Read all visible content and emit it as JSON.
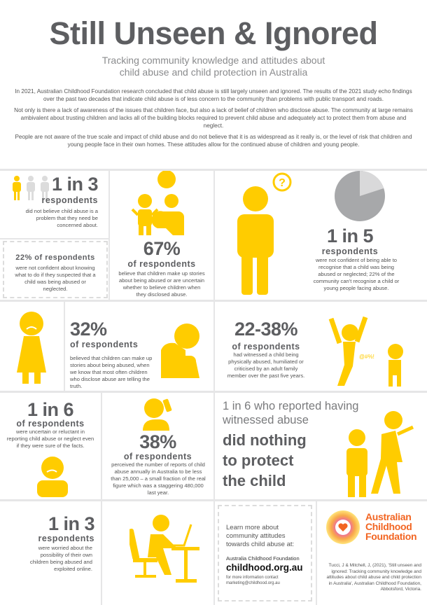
{
  "header": {
    "title": "Still Unseen & Ignored",
    "subtitle_line1": "Tracking community knowledge and attitudes about",
    "subtitle_line2": "child abuse and child protection in Australia"
  },
  "intro": [
    "In 2021, Australian Childhood Foundation research concluded that child abuse is still largely unseen and ignored. The results of the 2021 study echo findings over the past two decades that indicate child abuse is of less concern to the community than problems with public transport and roads.",
    "Not only is there a lack of awareness of the issues that children face, but also a lack of belief of children who disclose abuse. The community at large remains ambivalent about trusting children and lacks all of the building blocks required to prevent child abuse and adequately act to protect them from abuse and neglect.",
    "People are not aware of the true scale and impact of child abuse and do not believe that it is as widespread as it really is, or the level of risk that children and young people face in their own homes. These attitudes allow for the continued abuse of children and young people."
  ],
  "stats": {
    "s1": {
      "figure": "1 in 3",
      "label": "respondents",
      "text": "did not believe child abuse is a problem that they need be concerned about."
    },
    "s2": {
      "label": "22% of respondents",
      "text": "were not confident about knowing what to do if they suspected that a child was being abused or neglected."
    },
    "s3": {
      "figure": "67%",
      "label": "of respondents",
      "text": "believe that children make up stories about being abused or are uncertain whether to believe children when they disclosed abuse."
    },
    "s4": {
      "figure": "1 in 5",
      "label": "respondents",
      "text": "were not confident of being able to recognise that a child was being abused or neglected; 22% of the community can't recognise a child or young people facing abuse.",
      "pie_fraction": 0.2
    },
    "s5": {
      "figure": "32%",
      "label": "of respondents",
      "text": "believed that children can make up stories about being abused, when we know that most often children who disclose abuse are telling the truth."
    },
    "s6": {
      "figure": "22-38%",
      "label": "of respondents",
      "text": "had witnessed a child being physically abused, humiliated or criticised by an adult family member over the past five years.",
      "swear": "@#%!"
    },
    "s7": {
      "figure": "1 in 6",
      "label": "of respondents",
      "text": "were uncertain or reluctant in reporting child abuse or neglect even if they were sure of the facts."
    },
    "s8": {
      "figure": "38%",
      "label": "of respondents",
      "text": "perceived the number of reports of child abuse annually in Australia to be less than 25,000 – a small fraction of the real figure which was a staggering 480,000 last year."
    },
    "s9": {
      "line1": "1 in 6 who reported having",
      "line2": "witnessed abuse",
      "bold1": "did nothing",
      "bold2": "to protect",
      "bold3": "the child"
    },
    "s10": {
      "figure": "1 in 3",
      "label": "respondents",
      "text": "were worried about the possibility of their own children being abused and exploited online."
    }
  },
  "cta": {
    "lead": "Learn more about community attitudes towards child abuse at:",
    "org": "Australia Childhood Foundation",
    "url": "childhood.org.au",
    "contact_line1": "for more information contact",
    "contact_line2": "marketing@childhood.org.au"
  },
  "logo": {
    "line1": "Australian",
    "line2": "Childhood",
    "line3": "Foundation"
  },
  "citation": "Tucci, J & Mitchell, J, (2021), 'Still unseen and ignored: Tracking community knowledge and attitudes about child abuse and child protection in Australia', Australian Childhood Foundation, Abbotsford, Victoria.",
  "colors": {
    "accent": "#FFCC00",
    "text": "#5d5e61",
    "brand": "#f26522",
    "pie_dark": "#a7a8aa",
    "pie_light": "#d9d9da"
  }
}
